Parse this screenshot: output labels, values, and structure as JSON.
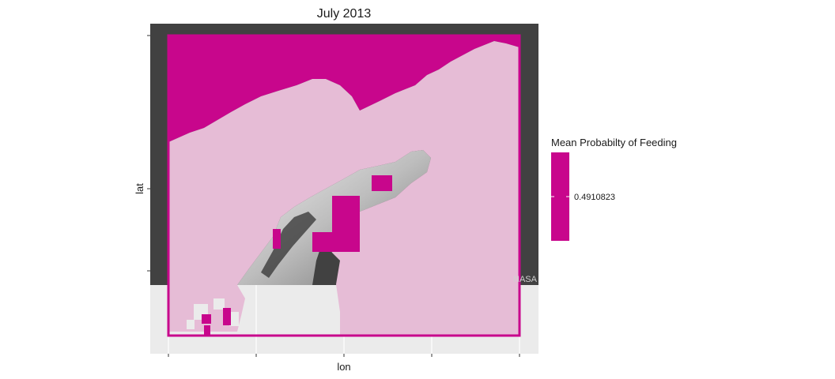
{
  "chart_data": {
    "type": "heatmap",
    "title": "July 2013",
    "xlabel": "lon",
    "ylabel": "lat",
    "x_ticks": [
      "",
      "",
      "",
      "",
      ""
    ],
    "y_ticks": [
      "",
      "",
      ""
    ],
    "legend": {
      "title": "Mean Probabilty of Feeding",
      "value_label": "0.4910823",
      "placement": "right"
    },
    "basemap_attribution": "NASA",
    "colors": {
      "high": "#c8068c",
      "low": "#e6bcd6",
      "panel": "#ebebeb",
      "basemap": "#3c3c3c"
    },
    "grid": true
  }
}
